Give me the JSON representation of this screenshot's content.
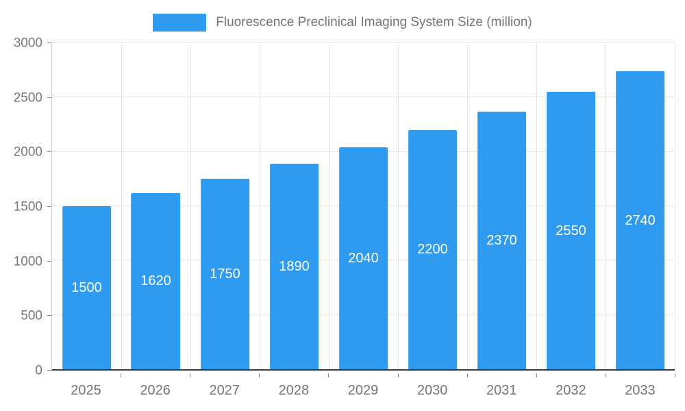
{
  "legend": {
    "label": "Fluorescence Preclinical Imaging System Size (million)"
  },
  "chart_data": {
    "type": "bar",
    "title": "Fluorescence Preclinical Imaging System Size (million)",
    "categories": [
      "2025",
      "2026",
      "2027",
      "2028",
      "2029",
      "2030",
      "2031",
      "2032",
      "2033"
    ],
    "values": [
      1500,
      1620,
      1750,
      1890,
      2040,
      2200,
      2370,
      2550,
      2740
    ],
    "xlabel": "",
    "ylabel": "",
    "ylim": [
      0,
      3000
    ],
    "yticks": [
      0,
      500,
      1000,
      1500,
      2000,
      2500,
      3000
    ],
    "grid": true,
    "legend_position": "top",
    "bar_color": "#2F9BF0",
    "bar_label_color": "#ffffff",
    "axis_label_color": "#757575"
  }
}
